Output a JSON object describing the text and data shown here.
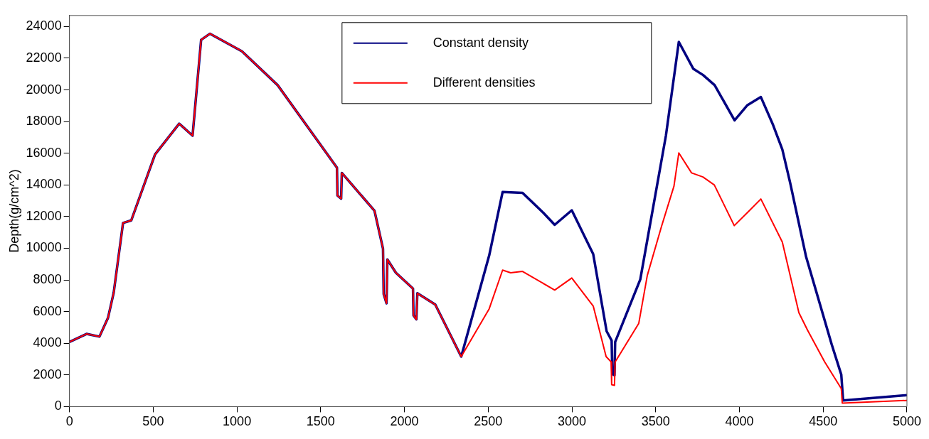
{
  "chart_data": {
    "type": "line",
    "ylabel": "Depth(g/cm^2)",
    "xlim": [
      0,
      5000
    ],
    "ylim": [
      0,
      24700
    ],
    "xticks": [
      0,
      500,
      1000,
      1500,
      2000,
      2500,
      3000,
      3500,
      4000,
      4500,
      5000
    ],
    "yticks": [
      0,
      2000,
      4000,
      6000,
      8000,
      10000,
      12000,
      14000,
      16000,
      18000,
      20000,
      22000,
      24000
    ],
    "grid": false,
    "legend": "top",
    "marker": "none",
    "line_style": "solid",
    "series": [
      {
        "name": "Constant density",
        "color": "#000080",
        "x": [
          0,
          102,
          179,
          230,
          264,
          320,
          369,
          511,
          655,
          735,
          786,
          839,
          1030,
          1243,
          1597,
          1600,
          1622,
          1626,
          1821,
          1872,
          1876,
          1893,
          1898,
          1949,
          2051,
          2054,
          2071,
          2077,
          2184,
          2339,
          2506,
          2586,
          2705,
          2829,
          2897,
          2999,
          3127,
          3207,
          3237,
          3241,
          3254,
          3258,
          3408,
          3561,
          3638,
          3724,
          3783,
          3852,
          3971,
          4048,
          4128,
          4201,
          4256,
          4304,
          4398,
          4551,
          4608,
          4619,
          5000
        ],
        "values": [
          4080,
          4590,
          4420,
          5600,
          7190,
          11600,
          11760,
          15930,
          17870,
          17110,
          23160,
          23550,
          22440,
          20300,
          15090,
          13330,
          13130,
          14760,
          12370,
          9970,
          7110,
          6520,
          9290,
          8450,
          7450,
          5760,
          5510,
          7160,
          6440,
          3160,
          9550,
          13550,
          13500,
          12240,
          11480,
          12400,
          9630,
          4760,
          4170,
          2070,
          1980,
          4080,
          8030,
          17110,
          23030,
          21340,
          20940,
          20300,
          18080,
          19040,
          19550,
          17780,
          16240,
          14080,
          9460,
          3920,
          2020,
          390,
          720
        ]
      },
      {
        "name": "Different densities",
        "color": "#ff0000",
        "x": [
          0,
          102,
          179,
          230,
          264,
          320,
          369,
          511,
          655,
          735,
          786,
          839,
          1030,
          1243,
          1597,
          1600,
          1622,
          1626,
          1821,
          1872,
          1876,
          1893,
          1898,
          1949,
          2051,
          2054,
          2071,
          2077,
          2184,
          2339,
          2506,
          2586,
          2634,
          2705,
          2897,
          2999,
          3127,
          3204,
          3234,
          3237,
          3254,
          3258,
          3399,
          3450,
          3535,
          3609,
          3638,
          3714,
          3782,
          3850,
          3969,
          4054,
          4128,
          4256,
          4355,
          4406,
          4509,
          4608,
          4614,
          5000
        ],
        "values": [
          4080,
          4590,
          4420,
          5600,
          7190,
          11600,
          11760,
          15930,
          17870,
          17110,
          23160,
          23550,
          22440,
          20300,
          15090,
          13330,
          13130,
          14760,
          12370,
          9970,
          7110,
          6520,
          9290,
          8450,
          7450,
          5760,
          5510,
          7160,
          6440,
          3160,
          6180,
          8620,
          8450,
          8540,
          7360,
          8120,
          6350,
          3160,
          2820,
          1390,
          1340,
          2820,
          5260,
          8290,
          11390,
          13920,
          16020,
          14760,
          14500,
          14000,
          11430,
          12320,
          13110,
          10390,
          5930,
          4840,
          2820,
          1140,
          220,
          390
        ]
      }
    ]
  }
}
